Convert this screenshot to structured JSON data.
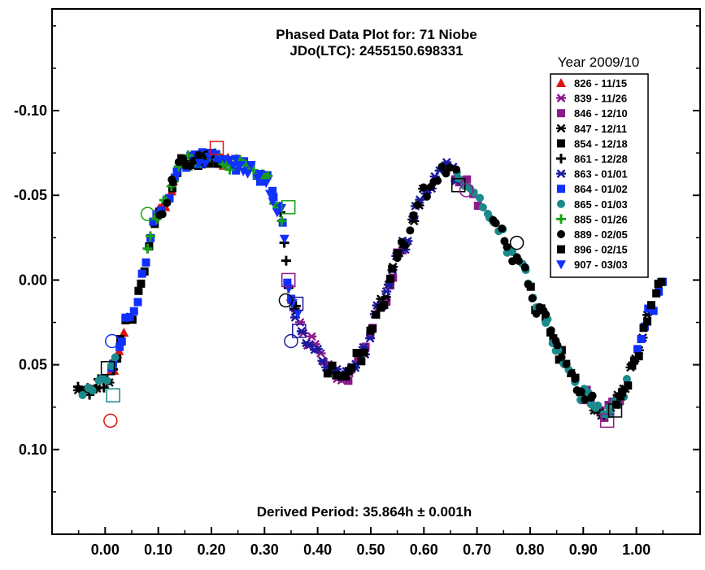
{
  "chart_data": {
    "type": "scatter",
    "title": "Phased Data Plot for: 71 Niobe",
    "subtitle": "JDo(LTC): 2455150.698331",
    "annotation": "Derived Period: 35.864h ± 0.001h",
    "legend_title": "Year 2009/10",
    "legend_position": "top-right",
    "xlim": [
      -0.1,
      1.12
    ],
    "ylim_top": -0.16,
    "ylim_bottom": 0.15,
    "y_inverted": true,
    "grid": false,
    "x_ticks": [
      {
        "value": 0.0,
        "label": "0.00"
      },
      {
        "value": 0.1,
        "label": "0.10"
      },
      {
        "value": 0.2,
        "label": "0.20"
      },
      {
        "value": 0.3,
        "label": "0.30"
      },
      {
        "value": 0.4,
        "label": "0.40"
      },
      {
        "value": 0.5,
        "label": "0.50"
      },
      {
        "value": 0.6,
        "label": "0.60"
      },
      {
        "value": 0.7,
        "label": "0.70"
      },
      {
        "value": 0.8,
        "label": "0.80"
      },
      {
        "value": 0.9,
        "label": "0.90"
      },
      {
        "value": 1.0,
        "label": "1.00"
      }
    ],
    "y_ticks": [
      {
        "value": -0.1,
        "label": "-0.10"
      },
      {
        "value": -0.05,
        "label": "-0.05"
      },
      {
        "value": 0.0,
        "label": "0.00"
      },
      {
        "value": 0.05,
        "label": "0.05"
      },
      {
        "value": 0.1,
        "label": "0.10"
      }
    ],
    "series": [
      {
        "name": "826 - 11/15",
        "color": "#e01010",
        "marker": "triangle-up",
        "ranges": [
          [
            0.01,
            0.04
          ],
          [
            0.1,
            0.23
          ]
        ]
      },
      {
        "name": "839 - 11/26",
        "color": "#8b1a8b",
        "marker": "asterisk",
        "ranges": [
          [
            0.35,
            0.46
          ]
        ]
      },
      {
        "name": "846 - 12/10",
        "color": "#8b1a8b",
        "marker": "square",
        "ranges": [
          [
            0.45,
            0.56
          ],
          [
            0.66,
            0.7
          ],
          [
            0.9,
            0.97
          ]
        ]
      },
      {
        "name": "847 - 12/11",
        "color": "#000000",
        "marker": "asterisk",
        "ranges": [
          [
            -0.05,
            0.01
          ],
          [
            0.52,
            0.6
          ],
          [
            0.92,
            1.02
          ]
        ]
      },
      {
        "name": "854 - 12/18",
        "color": "#000000",
        "marker": "square",
        "ranges": [
          [
            0.02,
            0.1
          ],
          [
            0.12,
            0.22
          ],
          [
            0.8,
            0.9
          ]
        ]
      },
      {
        "name": "861 - 12/28",
        "color": "#000000",
        "marker": "plus",
        "ranges": [
          [
            -0.05,
            0.02
          ],
          [
            0.33,
            0.36
          ]
        ]
      },
      {
        "name": "863 - 01/01",
        "color": "#1a1aa0",
        "marker": "asterisk",
        "ranges": [
          [
            0.36,
            0.47
          ],
          [
            0.47,
            0.66
          ]
        ]
      },
      {
        "name": "864 - 01/02",
        "color": "#1030ff",
        "marker": "square",
        "ranges": [
          [
            0.01,
            0.18
          ],
          [
            0.17,
            0.35
          ],
          [
            1.0,
            1.05
          ]
        ]
      },
      {
        "name": "865 - 01/03",
        "color": "#1a8a8a",
        "marker": "circle",
        "ranges": [
          [
            -0.04,
            0.02
          ],
          [
            0.66,
            0.95
          ],
          [
            0.95,
            0.99
          ]
        ]
      },
      {
        "name": "885 - 01/26",
        "color": "#18a018",
        "marker": "plus",
        "ranges": [
          [
            0.08,
            0.33
          ]
        ]
      },
      {
        "name": "889 - 02/05",
        "color": "#000000",
        "marker": "circle",
        "ranges": [
          [
            0.1,
            0.2
          ],
          [
            0.55,
            0.66
          ],
          [
            0.73,
            0.92
          ]
        ]
      },
      {
        "name": "896 - 02/15",
        "color": "#000000",
        "marker": "square",
        "ranges": [
          [
            0.42,
            0.55
          ],
          [
            0.96,
            1.05
          ]
        ]
      },
      {
        "name": "907 - 03/03",
        "color": "#1030ff",
        "marker": "triangle-down",
        "ranges": [
          [
            0.18,
            0.36
          ]
        ]
      }
    ],
    "highlighted_points": [
      {
        "x": 0.01,
        "y": 0.083,
        "shape": "circle",
        "color": "#e01010"
      },
      {
        "x": 0.005,
        "y": 0.052,
        "shape": "square",
        "color": "#000000"
      },
      {
        "x": 0.013,
        "y": 0.036,
        "shape": "circle",
        "color": "#1030ff"
      },
      {
        "x": 0.015,
        "y": 0.068,
        "shape": "square",
        "color": "#1a8a8a"
      },
      {
        "x": 0.08,
        "y": -0.039,
        "shape": "circle",
        "color": "#18a018"
      },
      {
        "x": 0.21,
        "y": -0.078,
        "shape": "square",
        "color": "#e01010"
      },
      {
        "x": 0.345,
        "y": -0.043,
        "shape": "square",
        "color": "#18a018"
      },
      {
        "x": 0.345,
        "y": 0.0,
        "shape": "square",
        "color": "#8b1a8b"
      },
      {
        "x": 0.34,
        "y": 0.012,
        "shape": "circle",
        "color": "#000000"
      },
      {
        "x": 0.36,
        "y": 0.014,
        "shape": "square",
        "color": "#1a1aa0"
      },
      {
        "x": 0.35,
        "y": 0.036,
        "shape": "circle",
        "color": "#1a1aa0"
      },
      {
        "x": 0.365,
        "y": 0.03,
        "shape": "square",
        "color": "#1a1aa0"
      },
      {
        "x": 0.665,
        "y": -0.056,
        "shape": "square",
        "color": "#000000"
      },
      {
        "x": 0.68,
        "y": -0.053,
        "shape": "circle",
        "color": "#8b1a8b"
      },
      {
        "x": 0.775,
        "y": -0.022,
        "shape": "circle",
        "color": "#000000"
      },
      {
        "x": 0.945,
        "y": 0.083,
        "shape": "square",
        "color": "#8b1a8b"
      },
      {
        "x": 0.96,
        "y": 0.077,
        "shape": "square",
        "color": "#000000"
      }
    ]
  }
}
